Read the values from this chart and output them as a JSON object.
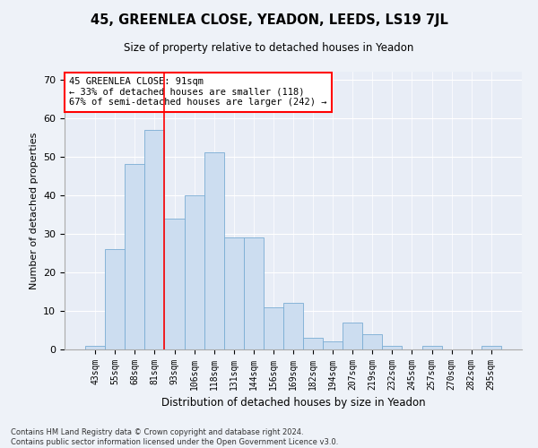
{
  "title": "45, GREENLEA CLOSE, YEADON, LEEDS, LS19 7JL",
  "subtitle": "Size of property relative to detached houses in Yeadon",
  "xlabel": "Distribution of detached houses by size in Yeadon",
  "ylabel": "Number of detached properties",
  "bar_color": "#ccddf0",
  "bar_edge_color": "#7aadd4",
  "categories": [
    "43sqm",
    "55sqm",
    "68sqm",
    "81sqm",
    "93sqm",
    "106sqm",
    "118sqm",
    "131sqm",
    "144sqm",
    "156sqm",
    "169sqm",
    "182sqm",
    "194sqm",
    "207sqm",
    "219sqm",
    "232sqm",
    "245sqm",
    "257sqm",
    "270sqm",
    "282sqm",
    "295sqm"
  ],
  "values": [
    1,
    26,
    48,
    57,
    34,
    40,
    51,
    29,
    29,
    11,
    12,
    3,
    2,
    7,
    4,
    1,
    0,
    1,
    0,
    0,
    1
  ],
  "ylim": [
    0,
    72
  ],
  "yticks": [
    0,
    10,
    20,
    30,
    40,
    50,
    60,
    70
  ],
  "annotation_label": "45 GREENLEA CLOSE: 91sqm",
  "annotation_line1": "← 33% of detached houses are smaller (118)",
  "annotation_line2": "67% of semi-detached houses are larger (242) →",
  "vline_position": 3.5,
  "footer_line1": "Contains HM Land Registry data © Crown copyright and database right 2024.",
  "footer_line2": "Contains public sector information licensed under the Open Government Licence v3.0.",
  "background_color": "#eef2f8",
  "plot_bg_color": "#e8edf6"
}
